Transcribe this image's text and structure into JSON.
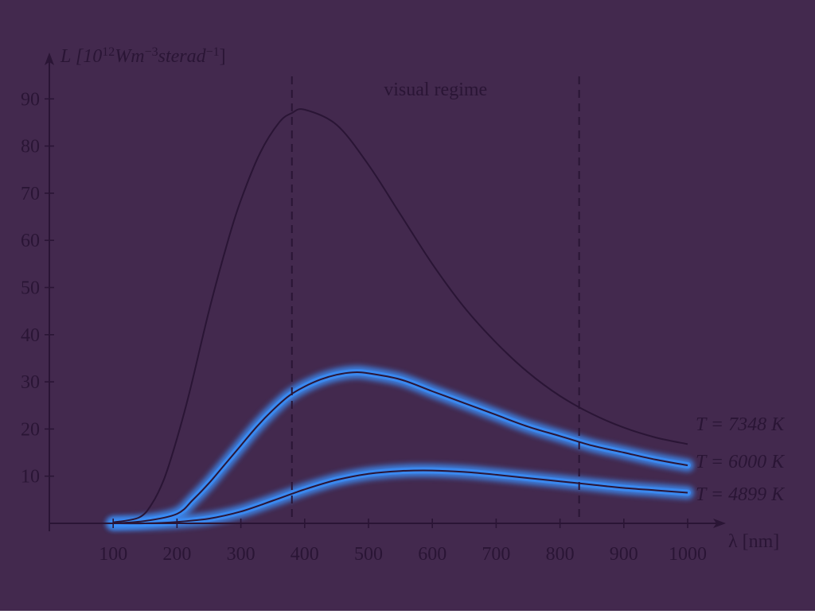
{
  "colors": {
    "background": "#43294e",
    "axis": "#2a1535",
    "text": "#2a1535",
    "curve": "#2a1535",
    "glow": "#3a8ef8"
  },
  "chart_data": {
    "type": "line",
    "title": "",
    "xlabel": "λ [nm]",
    "ylabel": {
      "main": "L [10",
      "exp1": "12",
      "mid": "Wm",
      "exp2": "−3",
      "mid2": "sterad",
      "exp3": "−1",
      "end": "]"
    },
    "xlim": [
      0,
      1060
    ],
    "ylim": [
      0,
      97
    ],
    "x_ticks": [
      100,
      200,
      300,
      400,
      500,
      600,
      700,
      800,
      900,
      1000
    ],
    "y_ticks": [
      10,
      20,
      30,
      40,
      50,
      60,
      70,
      80,
      90
    ],
    "grid": false,
    "annotation": {
      "text": "visual regime",
      "x_range": [
        380,
        830
      ]
    },
    "series": [
      {
        "name": "T = 7348 K",
        "x": [
          100,
          140,
          160,
          180,
          200,
          220,
          250,
          280,
          300,
          330,
          360,
          380,
          400,
          450,
          500,
          550,
          600,
          650,
          700,
          750,
          800,
          850,
          900,
          950,
          1000
        ],
        "y": [
          0.2,
          1.2,
          4.0,
          9.5,
          18.0,
          28.0,
          45.0,
          60.0,
          68.5,
          78.5,
          85.0,
          87.0,
          87.7,
          84.5,
          76.0,
          65.5,
          55.0,
          45.8,
          38.3,
          32.0,
          27.0,
          23.2,
          20.3,
          18.2,
          16.8
        ]
      },
      {
        "name": "T = 6000 K",
        "x": [
          100,
          150,
          200,
          225,
          250,
          275,
          300,
          325,
          350,
          375,
          400,
          425,
          450,
          475,
          500,
          550,
          600,
          650,
          700,
          750,
          800,
          850,
          900,
          950,
          1000
        ],
        "y": [
          0.0,
          0.5,
          2.0,
          5.0,
          8.5,
          12.5,
          16.5,
          20.5,
          24.0,
          27.0,
          29.0,
          30.5,
          31.5,
          32.0,
          31.8,
          30.5,
          28.0,
          25.5,
          23.0,
          20.5,
          18.5,
          16.5,
          15.0,
          13.5,
          12.3
        ]
      },
      {
        "name": "T = 4899 K",
        "x": [
          100,
          150,
          200,
          250,
          300,
          350,
          400,
          450,
          500,
          550,
          600,
          650,
          700,
          750,
          800,
          850,
          900,
          950,
          1000
        ],
        "y": [
          0.0,
          0.0,
          0.3,
          1.0,
          2.5,
          4.8,
          7.2,
          9.2,
          10.5,
          11.1,
          11.2,
          10.9,
          10.3,
          9.6,
          8.9,
          8.2,
          7.5,
          7.0,
          6.5
        ]
      }
    ]
  }
}
